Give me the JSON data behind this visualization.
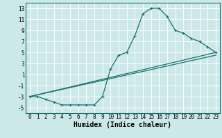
{
  "xlabel": "Humidex (Indice chaleur)",
  "bg_color": "#cce8e8",
  "grid_color": "#ffffff",
  "line_color": "#1a7070",
  "xlim": [
    -0.5,
    23.5
  ],
  "ylim": [
    -6,
    14
  ],
  "xticks": [
    0,
    1,
    2,
    3,
    4,
    5,
    6,
    7,
    8,
    9,
    10,
    11,
    12,
    13,
    14,
    15,
    16,
    17,
    18,
    19,
    20,
    21,
    22,
    23
  ],
  "yticks": [
    -5,
    -3,
    -1,
    1,
    3,
    5,
    7,
    9,
    11,
    13
  ],
  "line1_x": [
    0,
    1,
    2,
    3,
    4,
    5,
    6,
    7,
    8,
    9,
    10,
    11,
    12,
    13,
    14,
    15,
    16,
    17,
    18,
    19,
    20,
    21,
    22,
    23
  ],
  "line1_y": [
    -3,
    -3,
    -3.5,
    -4,
    -4.5,
    -4.5,
    -4.5,
    -4.5,
    -4.5,
    -3,
    2,
    4.5,
    5,
    8,
    12,
    13,
    13,
    11.5,
    9,
    8.5,
    7.5,
    7,
    6,
    5
  ],
  "line2_x": [
    0,
    23
  ],
  "line2_y": [
    -3,
    5
  ],
  "line3_x": [
    0,
    23
  ],
  "line3_y": [
    -3,
    5
  ],
  "tick_fontsize": 5.5,
  "xlabel_fontsize": 7
}
